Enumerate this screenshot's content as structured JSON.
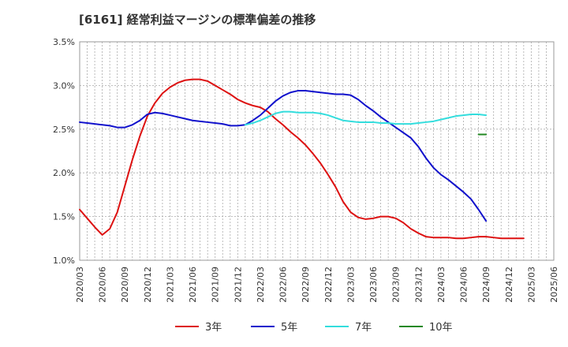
{
  "chart_data": {
    "type": "line",
    "title": "[6161]  経常利益マージンの標準偏差の推移",
    "xlabel": "",
    "ylabel": "",
    "ylim": [
      1.0,
      3.5
    ],
    "yticks": [
      "1.0%",
      "1.5%",
      "2.0%",
      "2.5%",
      "3.0%",
      "3.5%"
    ],
    "ytick_values": [
      1.0,
      1.5,
      2.0,
      2.5,
      3.0,
      3.5
    ],
    "xticks": [
      "2020/03",
      "2020/06",
      "2020/09",
      "2020/12",
      "2021/03",
      "2021/06",
      "2021/09",
      "2021/12",
      "2022/03",
      "2022/06",
      "2022/09",
      "2022/12",
      "2023/03",
      "2023/06",
      "2023/09",
      "2023/12",
      "2024/03",
      "2024/06",
      "2024/09",
      "2024/12",
      "2025/03",
      "2025/06"
    ],
    "grid": true,
    "legend_position": "bottom",
    "series": [
      {
        "name": "3年",
        "color": "#dd1111",
        "x": [
          0,
          1,
          2,
          3,
          4,
          5,
          6,
          7,
          8,
          9,
          10,
          11,
          12,
          13,
          14,
          15,
          16,
          17,
          18,
          19,
          20,
          21,
          22,
          23,
          24,
          25,
          26,
          27,
          28,
          29,
          30,
          31,
          32,
          33,
          34,
          35,
          36,
          37,
          38,
          39,
          40,
          41,
          42,
          43,
          44,
          45,
          46,
          47,
          48,
          49,
          50,
          51,
          52,
          53,
          54,
          55,
          56,
          57,
          58,
          59,
          60,
          61,
          62,
          63
        ],
        "values": [
          1.58,
          1.48,
          1.38,
          1.29,
          1.36,
          1.55,
          1.85,
          2.15,
          2.42,
          2.65,
          2.8,
          2.91,
          2.98,
          3.03,
          3.06,
          3.07,
          3.07,
          3.05,
          3.0,
          2.95,
          2.9,
          2.84,
          2.8,
          2.77,
          2.75,
          2.7,
          2.62,
          2.55,
          2.47,
          2.4,
          2.32,
          2.22,
          2.11,
          1.98,
          1.84,
          1.67,
          1.55,
          1.49,
          1.47,
          1.48,
          1.5,
          1.5,
          1.48,
          1.43,
          1.36,
          1.31,
          1.27,
          1.26,
          1.26,
          1.26,
          1.25,
          1.25,
          1.26,
          1.27,
          1.27,
          1.26,
          1.25,
          1.25,
          1.25,
          1.25,
          null,
          null,
          null,
          null
        ]
      },
      {
        "name": "5年",
        "color": "#1111cc",
        "x": [
          0,
          1,
          2,
          3,
          4,
          5,
          6,
          7,
          8,
          9,
          10,
          11,
          12,
          13,
          14,
          15,
          16,
          17,
          18,
          19,
          20,
          21,
          22,
          23,
          24,
          25,
          26,
          27,
          28,
          29,
          30,
          31,
          32,
          33,
          34,
          35,
          36,
          37,
          38,
          39,
          40,
          41,
          42,
          43,
          44,
          45,
          46,
          47,
          48,
          49,
          50,
          51,
          52,
          53,
          54,
          55,
          56,
          57,
          58,
          59,
          60,
          61,
          62,
          63
        ],
        "values": [
          2.58,
          2.57,
          2.56,
          2.55,
          2.54,
          2.52,
          2.52,
          2.55,
          2.6,
          2.67,
          2.69,
          2.68,
          2.66,
          2.64,
          2.62,
          2.6,
          2.59,
          2.58,
          2.57,
          2.56,
          2.54,
          2.54,
          2.55,
          2.6,
          2.66,
          2.74,
          2.82,
          2.88,
          2.92,
          2.94,
          2.94,
          2.93,
          2.92,
          2.91,
          2.9,
          2.9,
          2.89,
          2.84,
          2.77,
          2.71,
          2.64,
          2.58,
          2.52,
          2.46,
          2.4,
          2.3,
          2.17,
          2.06,
          1.98,
          1.92,
          1.85,
          1.78,
          1.7,
          1.58,
          1.45,
          null,
          null,
          null,
          null,
          null,
          null,
          null,
          null,
          null
        ]
      },
      {
        "name": "7年",
        "color": "#33dddd",
        "x": [
          22,
          23,
          24,
          25,
          26,
          27,
          28,
          29,
          30,
          31,
          32,
          33,
          34,
          35,
          36,
          37,
          38,
          39,
          40,
          41,
          42,
          43,
          44,
          45,
          46,
          47,
          48,
          49,
          50,
          51,
          52,
          53,
          54
        ],
        "values": [
          2.55,
          2.57,
          2.6,
          2.64,
          2.68,
          2.7,
          2.7,
          2.69,
          2.69,
          2.69,
          2.68,
          2.66,
          2.63,
          2.6,
          2.59,
          2.58,
          2.58,
          2.58,
          2.57,
          2.57,
          2.56,
          2.56,
          2.56,
          2.57,
          2.58,
          2.59,
          2.61,
          2.63,
          2.65,
          2.66,
          2.67,
          2.67,
          2.66
        ]
      },
      {
        "name": "10年",
        "color": "#228822",
        "x": [
          53,
          54
        ],
        "values": [
          2.44,
          2.44
        ]
      }
    ]
  }
}
